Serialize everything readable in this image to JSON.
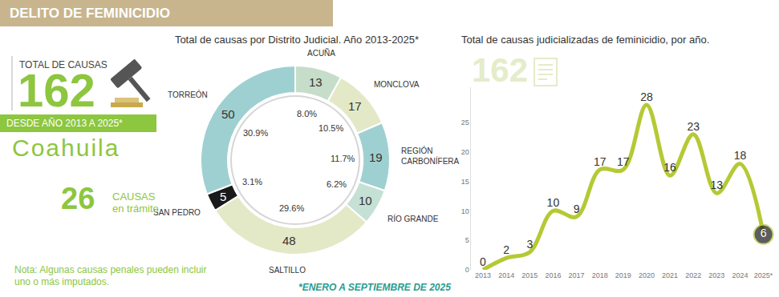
{
  "header": {
    "title": "DELITO DE FEMINICIDIO"
  },
  "summary": {
    "total_label": "TOTAL DE CAUSAS",
    "total": 162,
    "period": "DESDE AÑO 2013 A 2025*",
    "state": "Coahuila",
    "in_process": 26,
    "in_process_label": [
      "CAUSAS",
      "en trámite"
    ]
  },
  "note": "Nota: Algunas causas penales pueden incluir uno o más imputados.",
  "footnote": "*ENERO A SEPTIEMBRE DE 2025",
  "chart_data": [
    {
      "type": "donut",
      "title": "Total de causas por Distrito Judicial. Año 2013-2025*",
      "categories": [
        "ACUÑA",
        "MONCLOVA",
        "REGIÓN CARBONÍFERA",
        "RÍO GRANDE",
        "SALTILLO",
        "SAN PEDRO",
        "TORREÓN"
      ],
      "values": [
        13,
        17,
        19,
        10,
        48,
        5,
        50
      ],
      "percentages": [
        8.0,
        10.5,
        11.7,
        6.2,
        29.6,
        3.1,
        30.9
      ],
      "percentage_labels": [
        "8.0%",
        "10.5%",
        "11.7%",
        "6.2%",
        "29.6%",
        "3.1%",
        "30.9%"
      ],
      "colors": [
        "#c6ddca",
        "#e3e9c6",
        "#9fd0d1",
        "#c5e0d5",
        "#e3e9c6",
        "#1a1a1a",
        "#9fd0d1"
      ],
      "data_labels": true
    },
    {
      "type": "line",
      "title": "Total de causas judicializadas de feminicidio, por año.",
      "total": 162,
      "categories": [
        "2013",
        "2014",
        "2015",
        "2016",
        "2017",
        "2018",
        "2019",
        "2020",
        "2021",
        "2022",
        "2023",
        "2024",
        "2025*"
      ],
      "values": [
        0,
        2,
        3,
        10,
        9,
        17,
        17,
        28,
        16,
        23,
        13,
        18,
        6
      ],
      "color": "#b5c934",
      "line_style": "smooth",
      "ylim": [
        0,
        31
      ],
      "yticks": [
        0,
        5,
        10,
        15,
        20,
        25
      ],
      "grid": false,
      "data_labels": true
    }
  ]
}
